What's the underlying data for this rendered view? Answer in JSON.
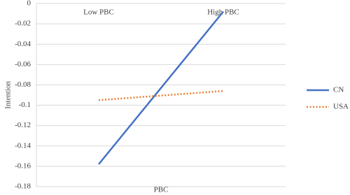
{
  "chart_data": {
    "type": "line",
    "x_label": "PBC",
    "y_label": "Intention",
    "categories": [
      "Low PBC",
      "High PBC"
    ],
    "series": [
      {
        "name": "CN",
        "color": "#4472c4",
        "dash": "solid",
        "values": [
          -0.158,
          -0.008
        ]
      },
      {
        "name": "USA",
        "color": "#ed7d31",
        "dash": "dotted",
        "values": [
          -0.095,
          -0.086
        ]
      }
    ],
    "ylim": [
      -0.18,
      0
    ],
    "yticks": [
      0,
      -0.02,
      -0.04,
      -0.06,
      -0.08,
      -0.1,
      -0.12,
      -0.14,
      -0.16,
      -0.18
    ],
    "grid": true,
    "legend": "right"
  }
}
